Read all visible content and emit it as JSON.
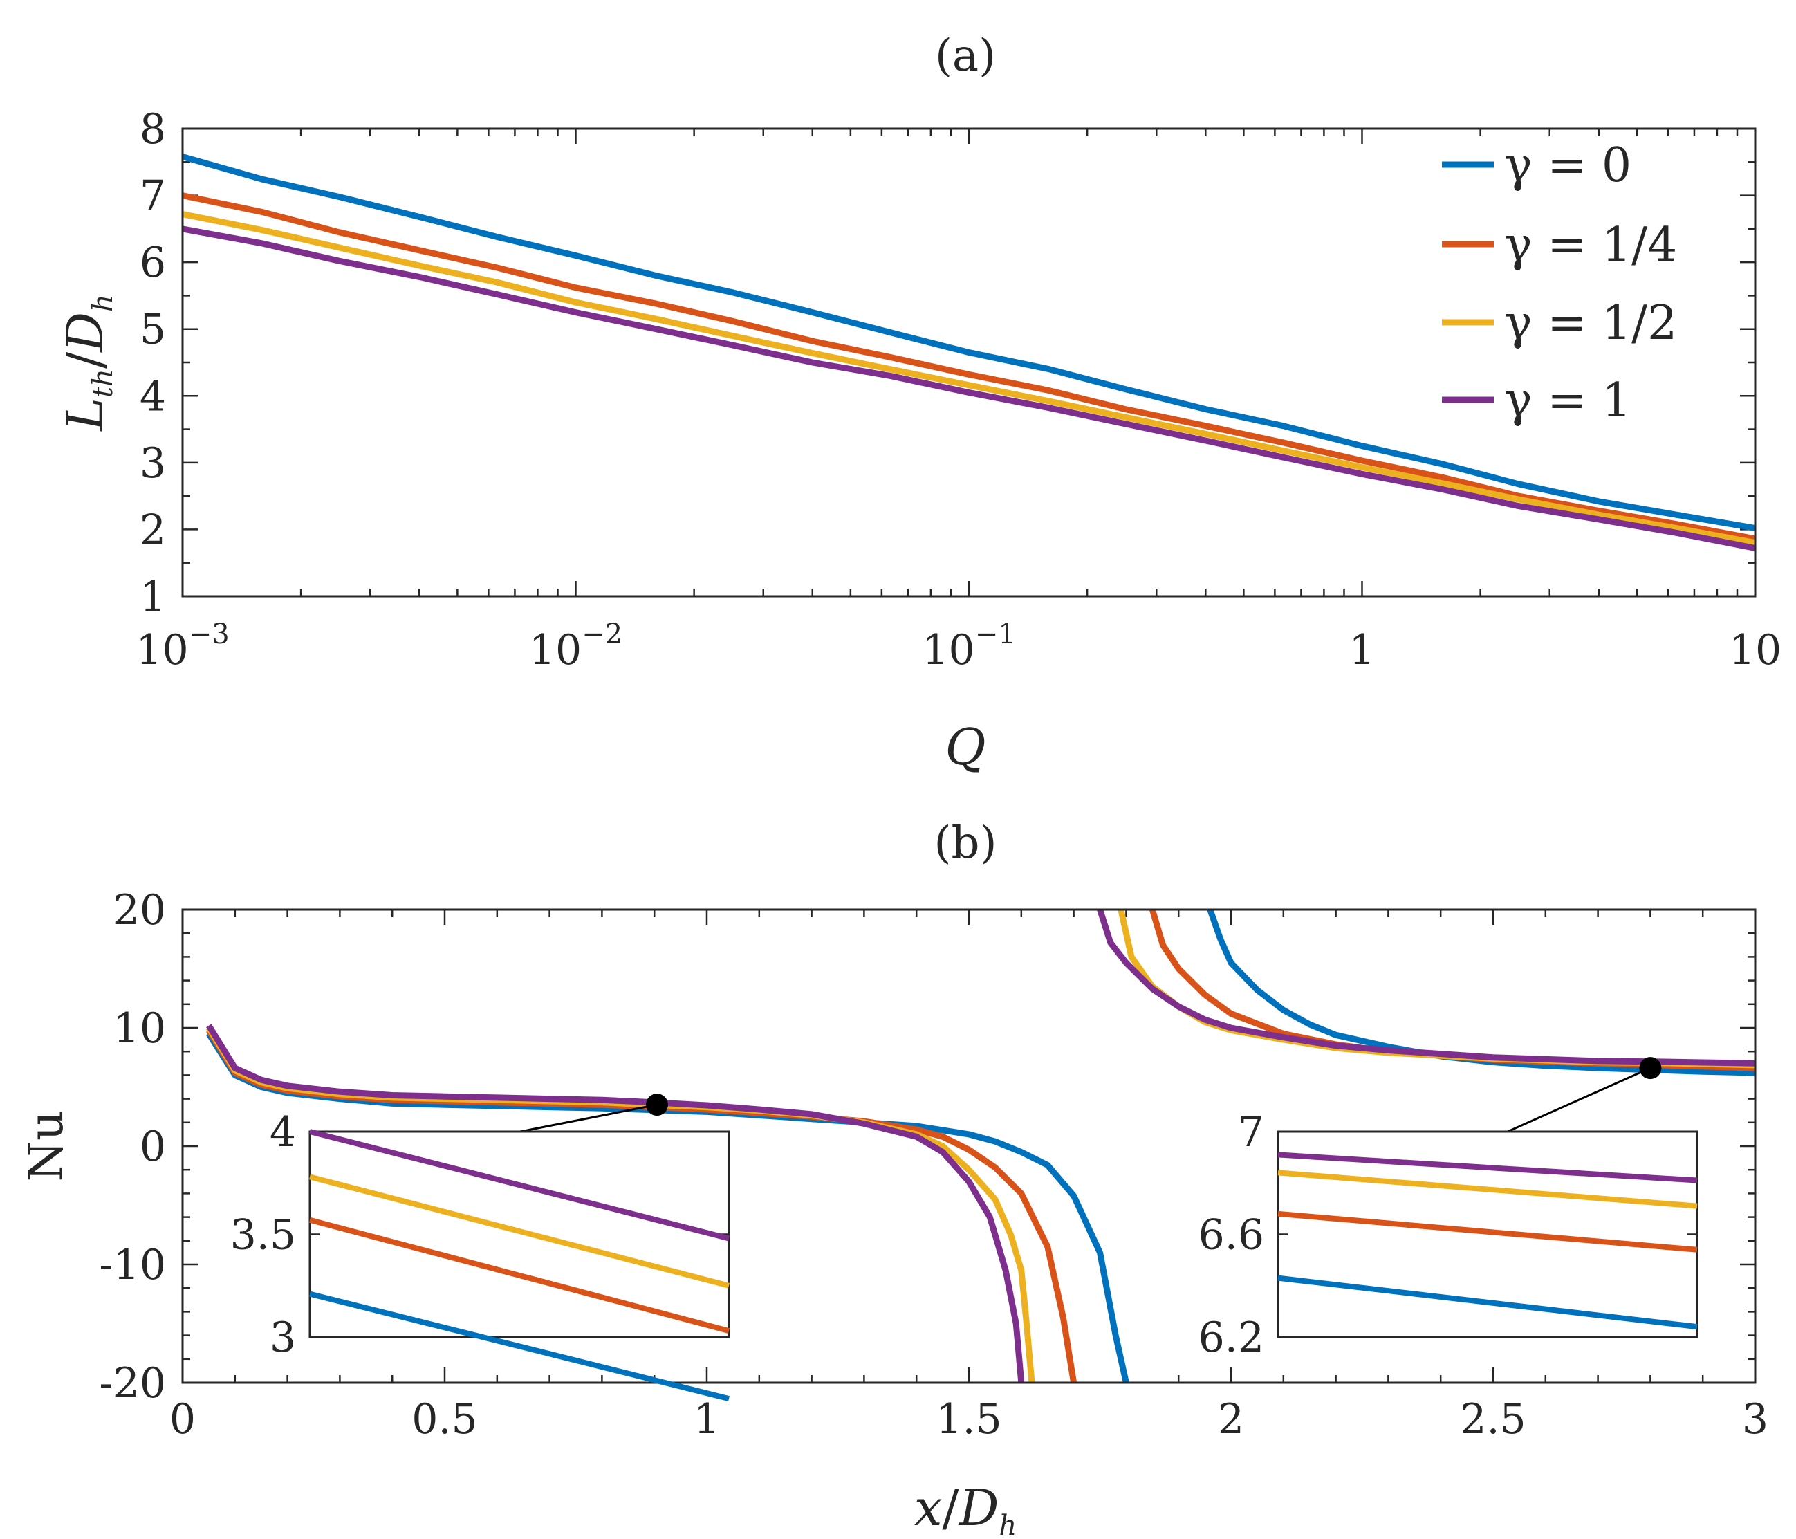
{
  "colors": {
    "gamma0": "#0072BD",
    "gamma14": "#D95319",
    "gamma12": "#EDB120",
    "gamma1": "#7E2F8E",
    "axis": "#262626",
    "marker": "#000000"
  },
  "chart_data": [
    {
      "id": "a",
      "type": "line",
      "panel_label": "(a)",
      "xlabel": "Q",
      "ylabel": "L_th / D_h",
      "ylabel_main": "L",
      "ylabel_sub": "th",
      "ylabel_div": "/",
      "ylabel_den": "D",
      "ylabel_den_sub": "h",
      "xscale": "log",
      "xlim": [
        0.001,
        10
      ],
      "ylim": [
        1,
        8
      ],
      "xticks": [
        {
          "value": 0.001,
          "base": "10",
          "exp": "−3"
        },
        {
          "value": 0.01,
          "base": "10",
          "exp": "−2"
        },
        {
          "value": 0.1,
          "base": "10",
          "exp": "−1"
        },
        {
          "value": 1,
          "base": "1",
          "exp": ""
        },
        {
          "value": 10,
          "base": "10",
          "exp": ""
        }
      ],
      "yticks": [
        1,
        2,
        3,
        4,
        5,
        6,
        7,
        8
      ],
      "legend_position": "top-right",
      "x": [
        0.001,
        0.0016,
        0.0025,
        0.004,
        0.0063,
        0.01,
        0.016,
        0.025,
        0.04,
        0.063,
        0.1,
        0.16,
        0.25,
        0.4,
        0.63,
        1,
        1.6,
        2.5,
        4,
        6.3,
        10
      ],
      "series": [
        {
          "name": "γ = 0",
          "legend_label": "γ = 0",
          "color_key": "gamma0",
          "values": [
            7.58,
            7.24,
            6.98,
            6.68,
            6.38,
            6.1,
            5.8,
            5.55,
            5.25,
            4.95,
            4.65,
            4.4,
            4.1,
            3.8,
            3.55,
            3.25,
            2.98,
            2.68,
            2.42,
            2.22,
            2.02
          ]
        },
        {
          "name": "γ = 1/4",
          "legend_label": "γ = 1/4",
          "color_key": "gamma14",
          "values": [
            7.0,
            6.75,
            6.45,
            6.18,
            5.92,
            5.62,
            5.38,
            5.12,
            4.82,
            4.58,
            4.32,
            4.08,
            3.8,
            3.55,
            3.3,
            3.03,
            2.78,
            2.5,
            2.28,
            2.08,
            1.86
          ]
        },
        {
          "name": "γ = 1/2",
          "legend_label": "γ = 1/2",
          "color_key": "gamma12",
          "values": [
            6.72,
            6.48,
            6.22,
            5.95,
            5.7,
            5.4,
            5.15,
            4.9,
            4.64,
            4.4,
            4.16,
            3.92,
            3.68,
            3.43,
            3.18,
            2.93,
            2.69,
            2.45,
            2.22,
            2.02,
            1.8
          ]
        },
        {
          "name": "γ = 1",
          "legend_label": "γ = 1",
          "color_key": "gamma1",
          "values": [
            6.5,
            6.28,
            6.02,
            5.78,
            5.52,
            5.25,
            5.0,
            4.76,
            4.5,
            4.3,
            4.05,
            3.82,
            3.58,
            3.33,
            3.08,
            2.83,
            2.6,
            2.35,
            2.15,
            1.95,
            1.72
          ]
        }
      ]
    },
    {
      "id": "b",
      "type": "line",
      "panel_label": "(b)",
      "xlabel": "x / D_h",
      "xlabel_main": "x",
      "xlabel_div": "/",
      "xlabel_den": "D",
      "xlabel_den_sub": "h",
      "ylabel": "Nu",
      "xlim": [
        0,
        3
      ],
      "ylim": [
        -20,
        20
      ],
      "xticks": [
        0,
        0.5,
        1,
        1.5,
        2,
        2.5,
        3
      ],
      "xtick_labels": [
        "0",
        "0.5",
        "1",
        "1.5",
        "2",
        "2.5",
        "3"
      ],
      "yticks": [
        -20,
        -10,
        0,
        10,
        20
      ],
      "ytick_labels": [
        "-20",
        "-10",
        "0",
        "10",
        "20"
      ],
      "series": [
        {
          "name": "γ = 0",
          "color_key": "gamma0",
          "branch1": [
            [
              0.05,
              9.5
            ],
            [
              0.1,
              6.0
            ],
            [
              0.15,
              5.0
            ],
            [
              0.2,
              4.5
            ],
            [
              0.3,
              4.0
            ],
            [
              0.4,
              3.6
            ],
            [
              0.5,
              3.5
            ],
            [
              0.6,
              3.4
            ],
            [
              0.7,
              3.3
            ],
            [
              0.8,
              3.2
            ],
            [
              0.9,
              3.05
            ],
            [
              1.0,
              2.9
            ],
            [
              1.1,
              2.6
            ],
            [
              1.2,
              2.3
            ],
            [
              1.3,
              2.0
            ],
            [
              1.4,
              1.7
            ],
            [
              1.5,
              1.0
            ],
            [
              1.55,
              0.4
            ],
            [
              1.6,
              -0.5
            ],
            [
              1.65,
              -1.6
            ],
            [
              1.7,
              -4.2
            ],
            [
              1.75,
              -9.0
            ],
            [
              1.78,
              -16.0
            ],
            [
              1.8,
              -20
            ]
          ],
          "branch2": [
            [
              1.96,
              20
            ],
            [
              1.98,
              17.5
            ],
            [
              2.0,
              15.5
            ],
            [
              2.05,
              13.2
            ],
            [
              2.1,
              11.5
            ],
            [
              2.15,
              10.3
            ],
            [
              2.2,
              9.4
            ],
            [
              2.3,
              8.4
            ],
            [
              2.4,
              7.6
            ],
            [
              2.5,
              7.1
            ],
            [
              2.6,
              6.8
            ],
            [
              2.7,
              6.6
            ],
            [
              2.8,
              6.45
            ],
            [
              2.9,
              6.3
            ],
            [
              3.0,
              6.2
            ]
          ]
        },
        {
          "name": "γ = 1/4",
          "color_key": "gamma14",
          "branch1": [
            [
              0.05,
              9.8
            ],
            [
              0.1,
              6.2
            ],
            [
              0.15,
              5.2
            ],
            [
              0.2,
              4.7
            ],
            [
              0.3,
              4.2
            ],
            [
              0.4,
              3.9
            ],
            [
              0.5,
              3.8
            ],
            [
              0.6,
              3.7
            ],
            [
              0.7,
              3.6
            ],
            [
              0.8,
              3.5
            ],
            [
              0.9,
              3.3
            ],
            [
              1.0,
              3.1
            ],
            [
              1.1,
              2.8
            ],
            [
              1.2,
              2.5
            ],
            [
              1.3,
              2.1
            ],
            [
              1.4,
              1.4
            ],
            [
              1.45,
              0.8
            ],
            [
              1.5,
              -0.3
            ],
            [
              1.55,
              -1.8
            ],
            [
              1.6,
              -4.0
            ],
            [
              1.65,
              -8.5
            ],
            [
              1.68,
              -14.5
            ],
            [
              1.7,
              -20
            ]
          ],
          "branch2": [
            [
              1.85,
              20
            ],
            [
              1.87,
              17.0
            ],
            [
              1.9,
              15.0
            ],
            [
              1.95,
              12.8
            ],
            [
              2.0,
              11.2
            ],
            [
              2.1,
              9.5
            ],
            [
              2.2,
              8.6
            ],
            [
              2.3,
              8.0
            ],
            [
              2.5,
              7.3
            ],
            [
              2.7,
              7.0
            ],
            [
              2.8,
              6.88
            ],
            [
              3.0,
              6.6
            ]
          ]
        },
        {
          "name": "γ = 1/2",
          "color_key": "gamma12",
          "branch1": [
            [
              0.05,
              10.0
            ],
            [
              0.1,
              6.4
            ],
            [
              0.15,
              5.4
            ],
            [
              0.2,
              4.9
            ],
            [
              0.3,
              4.4
            ],
            [
              0.4,
              4.1
            ],
            [
              0.5,
              4.0
            ],
            [
              0.6,
              3.9
            ],
            [
              0.7,
              3.8
            ],
            [
              0.8,
              3.7
            ],
            [
              0.9,
              3.5
            ],
            [
              1.0,
              3.3
            ],
            [
              1.1,
              3.0
            ],
            [
              1.2,
              2.6
            ],
            [
              1.3,
              2.0
            ],
            [
              1.4,
              1.0
            ],
            [
              1.45,
              0.0
            ],
            [
              1.5,
              -2.0
            ],
            [
              1.55,
              -4.5
            ],
            [
              1.58,
              -7.5
            ],
            [
              1.6,
              -10.5
            ],
            [
              1.61,
              -15.0
            ],
            [
              1.62,
              -20
            ]
          ],
          "branch2": [
            [
              1.79,
              20
            ],
            [
              1.81,
              16.0
            ],
            [
              1.85,
              13.5
            ],
            [
              1.9,
              11.8
            ],
            [
              1.95,
              10.5
            ],
            [
              2.0,
              9.8
            ],
            [
              2.1,
              9.0
            ],
            [
              2.2,
              8.3
            ],
            [
              2.3,
              7.9
            ],
            [
              2.5,
              7.4
            ],
            [
              2.7,
              7.1
            ],
            [
              2.8,
              7.05
            ],
            [
              3.0,
              6.85
            ]
          ]
        },
        {
          "name": "γ = 1",
          "color_key": "gamma1",
          "branch1": [
            [
              0.05,
              10.2
            ],
            [
              0.1,
              6.6
            ],
            [
              0.15,
              5.6
            ],
            [
              0.2,
              5.1
            ],
            [
              0.3,
              4.6
            ],
            [
              0.4,
              4.3
            ],
            [
              0.5,
              4.2
            ],
            [
              0.6,
              4.1
            ],
            [
              0.7,
              4.0
            ],
            [
              0.8,
              3.9
            ],
            [
              0.9,
              3.7
            ],
            [
              1.0,
              3.45
            ],
            [
              1.1,
              3.1
            ],
            [
              1.2,
              2.7
            ],
            [
              1.3,
              1.9
            ],
            [
              1.4,
              0.8
            ],
            [
              1.45,
              -0.5
            ],
            [
              1.5,
              -3.0
            ],
            [
              1.54,
              -6.0
            ],
            [
              1.57,
              -10.5
            ],
            [
              1.59,
              -15.0
            ],
            [
              1.6,
              -20
            ]
          ],
          "branch2": [
            [
              1.75,
              20
            ],
            [
              1.77,
              17.2
            ],
            [
              1.8,
              15.5
            ],
            [
              1.85,
              13.3
            ],
            [
              1.9,
              11.8
            ],
            [
              1.95,
              10.7
            ],
            [
              2.0,
              10.0
            ],
            [
              2.1,
              9.2
            ],
            [
              2.2,
              8.5
            ],
            [
              2.3,
              8.1
            ],
            [
              2.5,
              7.5
            ],
            [
              2.7,
              7.2
            ],
            [
              2.8,
              7.15
            ],
            [
              3.0,
              7.0
            ]
          ]
        }
      ],
      "markers": [
        {
          "x": 0.905,
          "y": 3.5
        },
        {
          "x": 2.8,
          "y": 6.6
        }
      ],
      "insets": [
        {
          "id": "left",
          "ylim": [
            3,
            4
          ],
          "yticks": [
            3,
            3.5,
            4
          ],
          "ytick_labels": [
            "3",
            "3.5",
            "4"
          ],
          "lines": [
            {
              "color_key": "gamma1",
              "start": 4.0,
              "end": 3.48
            },
            {
              "color_key": "gamma12",
              "start": 3.78,
              "end": 3.25
            },
            {
              "color_key": "gamma14",
              "start": 3.57,
              "end": 3.03
            },
            {
              "color_key": "gamma0",
              "start": 3.21,
              "end": 2.7
            }
          ]
        },
        {
          "id": "right",
          "ylim": [
            6.2,
            7
          ],
          "yticks": [
            6.2,
            6.6,
            7
          ],
          "ytick_labels": [
            "6.2",
            "6.6",
            "7"
          ],
          "lines": [
            {
              "color_key": "gamma1",
              "start": 6.91,
              "end": 6.81
            },
            {
              "color_key": "gamma12",
              "start": 6.84,
              "end": 6.71
            },
            {
              "color_key": "gamma14",
              "start": 6.68,
              "end": 6.54
            },
            {
              "color_key": "gamma0",
              "start": 6.43,
              "end": 6.24
            }
          ]
        }
      ]
    }
  ]
}
